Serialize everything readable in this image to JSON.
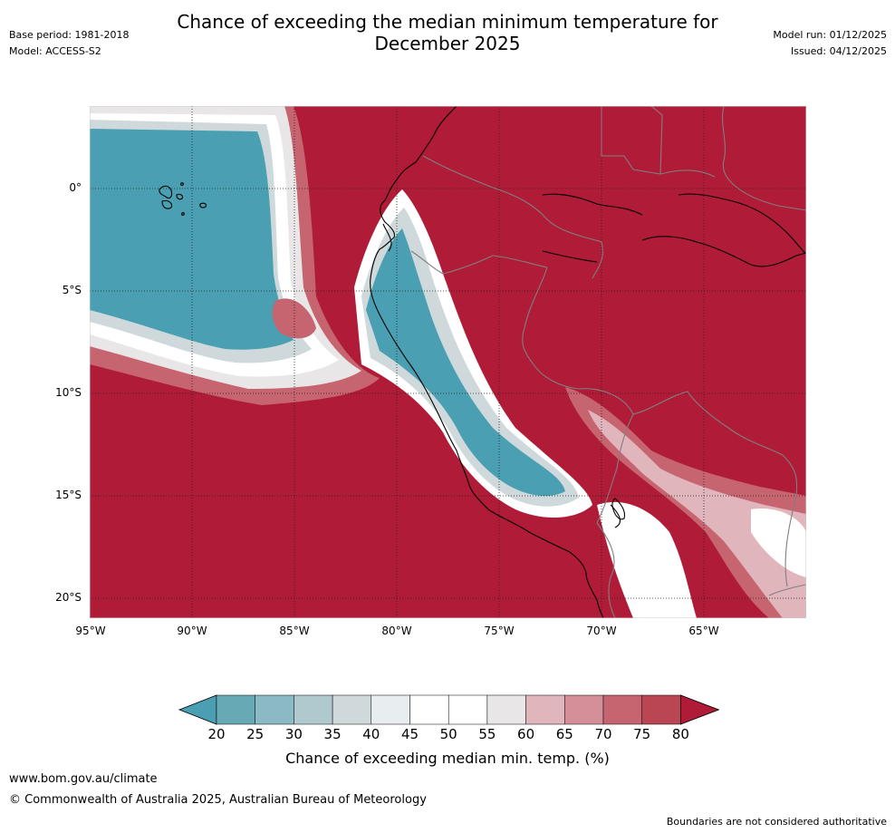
{
  "header": {
    "title_line1": "Chance of exceeding the median minimum temperature for",
    "title_line2": "December 2025",
    "base_period": "Base period: 1981-2018",
    "model": "Model: ACCESS-S2",
    "model_run": "Model run: 01/12/2025",
    "issued": "Issued: 04/12/2025"
  },
  "map": {
    "lat_labels": [
      "0°",
      "5°S",
      "10°S",
      "15°S",
      "20°S"
    ],
    "lon_labels": [
      "95°W",
      "90°W",
      "85°W",
      "80°W",
      "75°W",
      "70°W",
      "65°W"
    ]
  },
  "colorbar": {
    "ticks": [
      "20",
      "25",
      "30",
      "35",
      "40",
      "45",
      "50",
      "55",
      "60",
      "65",
      "70",
      "75",
      "80"
    ],
    "colors": [
      "#4aa0b2",
      "#68a9b6",
      "#8cbac4",
      "#afc9ce",
      "#cfd9db",
      "#e8edf0",
      "#ffffff",
      "#ffffff",
      "#e9e6e7",
      "#e0b5bb",
      "#d48f99",
      "#c66470",
      "#bb4653",
      "#b01c37"
    ],
    "label": "Chance of exceeding median min. temp. (%)"
  },
  "footer": {
    "website": "www.bom.gov.au/climate",
    "copyright": "© Commonwealth of Australia 2025, Australian Bureau of Meteorology",
    "disclaimer": "Boundaries are not considered authoritative"
  }
}
